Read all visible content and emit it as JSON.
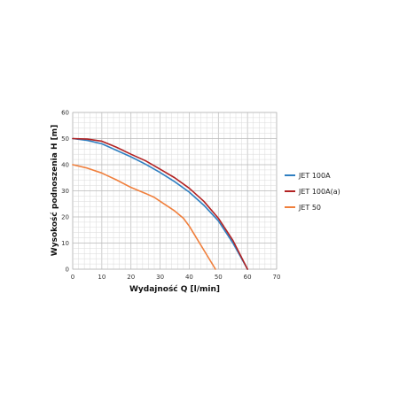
{
  "chart_data": {
    "type": "line",
    "title": "",
    "xlabel": "Wydajność Q [l/min]",
    "ylabel": "Wysokość podnoszenia H [m]",
    "xlim": [
      0,
      70
    ],
    "ylim": [
      0,
      60
    ],
    "xticks": [
      0,
      10,
      20,
      30,
      40,
      50,
      60,
      70
    ],
    "yticks": [
      0,
      10,
      20,
      30,
      40,
      50,
      60
    ],
    "grid": true,
    "legend_position": "right",
    "series": [
      {
        "name": "JET 100A",
        "color": "#2f7fc1",
        "points": [
          [
            0,
            50
          ],
          [
            5,
            49.3
          ],
          [
            10,
            48
          ],
          [
            15,
            45.5
          ],
          [
            20,
            43
          ],
          [
            25,
            40.2
          ],
          [
            30,
            37
          ],
          [
            35,
            33.5
          ],
          [
            40,
            29.5
          ],
          [
            45,
            24.5
          ],
          [
            50,
            18.5
          ],
          [
            55,
            10
          ],
          [
            60,
            0
          ]
        ]
      },
      {
        "name": "JET 100A(a)",
        "color": "#b22222",
        "points": [
          [
            0,
            50
          ],
          [
            5,
            49.8
          ],
          [
            10,
            49
          ],
          [
            15,
            46.7
          ],
          [
            20,
            44
          ],
          [
            25,
            41.5
          ],
          [
            30,
            38.3
          ],
          [
            35,
            35
          ],
          [
            40,
            31
          ],
          [
            45,
            26
          ],
          [
            50,
            19.5
          ],
          [
            55,
            11
          ],
          [
            60,
            0
          ]
        ]
      },
      {
        "name": "JET 50",
        "color": "#f07f3c",
        "points": [
          [
            0,
            40
          ],
          [
            5,
            38.7
          ],
          [
            10,
            36.8
          ],
          [
            15,
            34.2
          ],
          [
            20,
            31.3
          ],
          [
            25,
            29
          ],
          [
            28,
            27.5
          ],
          [
            30,
            26
          ],
          [
            35,
            22.3
          ],
          [
            38,
            19.5
          ],
          [
            40,
            16.5
          ],
          [
            43,
            11
          ],
          [
            46,
            5.5
          ],
          [
            49,
            0
          ]
        ]
      }
    ]
  }
}
